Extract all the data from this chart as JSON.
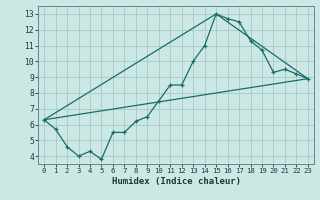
{
  "xlabel": "Humidex (Indice chaleur)",
  "bg_color": "#cce8e4",
  "grid_color": "#aacecc",
  "line_color": "#1a6b6b",
  "xlim": [
    -0.5,
    23.5
  ],
  "ylim": [
    3.5,
    13.5
  ],
  "xticks": [
    0,
    1,
    2,
    3,
    4,
    5,
    6,
    7,
    8,
    9,
    10,
    11,
    12,
    13,
    14,
    15,
    16,
    17,
    18,
    19,
    20,
    21,
    22,
    23
  ],
  "yticks": [
    4,
    5,
    6,
    7,
    8,
    9,
    10,
    11,
    12,
    13
  ],
  "line1_x": [
    0,
    1,
    2,
    3,
    4,
    5,
    6,
    7,
    8,
    9,
    10,
    11,
    12,
    13,
    14,
    15,
    16,
    17,
    18,
    19,
    20,
    21,
    22,
    23
  ],
  "line1_y": [
    6.3,
    5.7,
    4.6,
    4.0,
    4.3,
    3.8,
    5.5,
    5.5,
    6.2,
    6.5,
    7.5,
    8.5,
    8.5,
    10.0,
    11.0,
    13.0,
    12.7,
    12.5,
    11.3,
    10.7,
    9.3,
    9.5,
    9.2,
    8.9
  ],
  "line2_x": [
    0,
    23
  ],
  "line2_y": [
    6.3,
    8.9
  ],
  "line3_x": [
    0,
    15,
    23
  ],
  "line3_y": [
    6.3,
    13.0,
    8.9
  ]
}
